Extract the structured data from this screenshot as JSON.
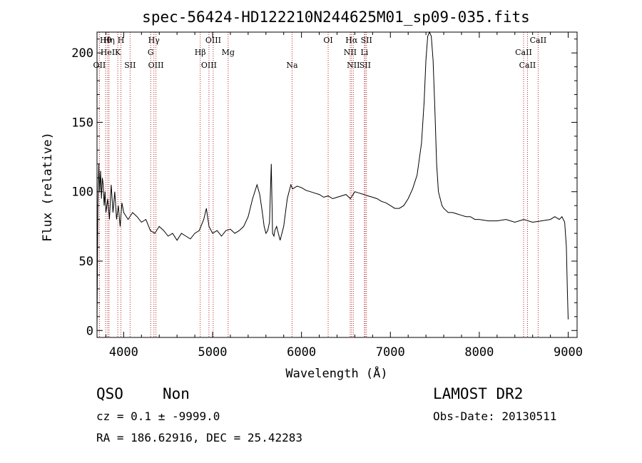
{
  "chart_data": {
    "type": "line",
    "title": "spec-56424-HD122210N244625M01_sp09-035.fits",
    "xlabel": "Wavelength (Å)",
    "ylabel": "Flux (relative)",
    "xlim": [
      3700,
      9100
    ],
    "ylim": [
      -5,
      215
    ],
    "xticks": [
      "4000",
      "5000",
      "6000",
      "7000",
      "8000",
      "9000"
    ],
    "yticks": [
      "0",
      "50",
      "100",
      "150",
      "200"
    ],
    "grid": false,
    "series": [
      {
        "color": "#000000",
        "x": [
          3700,
          3710,
          3720,
          3730,
          3740,
          3750,
          3760,
          3770,
          3780,
          3790,
          3800,
          3820,
          3840,
          3860,
          3880,
          3900,
          3920,
          3940,
          3960,
          3980,
          4000,
          4050,
          4100,
          4150,
          4200,
          4250,
          4300,
          4350,
          4400,
          4450,
          4500,
          4550,
          4600,
          4650,
          4700,
          4750,
          4800,
          4850,
          4900,
          4930,
          4960,
          5000,
          5050,
          5100,
          5150,
          5200,
          5250,
          5300,
          5350,
          5400,
          5450,
          5500,
          5530,
          5560,
          5580,
          5600,
          5620,
          5640,
          5660,
          5675,
          5690,
          5700,
          5720,
          5740,
          5760,
          5780,
          5800,
          5820,
          5840,
          5860,
          5880,
          5900,
          5950,
          6000,
          6050,
          6100,
          6150,
          6200,
          6250,
          6300,
          6350,
          6400,
          6450,
          6500,
          6550,
          6600,
          6650,
          6700,
          6750,
          6800,
          6850,
          6900,
          6950,
          7000,
          7050,
          7100,
          7150,
          7200,
          7250,
          7300,
          7350,
          7380,
          7400,
          7420,
          7440,
          7460,
          7480,
          7500,
          7520,
          7540,
          7560,
          7580,
          7600,
          7650,
          7700,
          7750,
          7800,
          7850,
          7900,
          7950,
          8000,
          8100,
          8200,
          8300,
          8400,
          8500,
          8600,
          8700,
          8800,
          8850,
          8900,
          8930,
          8960,
          8980,
          8990,
          9000
        ],
        "y": [
          3,
          90,
          120,
          100,
          115,
          95,
          110,
          105,
          90,
          100,
          85,
          95,
          80,
          105,
          85,
          100,
          80,
          90,
          75,
          92,
          85,
          80,
          85,
          82,
          78,
          80,
          72,
          70,
          75,
          72,
          68,
          70,
          65,
          70,
          68,
          66,
          70,
          72,
          80,
          88,
          75,
          70,
          72,
          68,
          72,
          73,
          70,
          72,
          75,
          82,
          95,
          105,
          98,
          85,
          75,
          70,
          72,
          78,
          120,
          70,
          68,
          72,
          75,
          70,
          65,
          70,
          75,
          85,
          95,
          100,
          105,
          102,
          104,
          103,
          101,
          100,
          99,
          98,
          96,
          97,
          95,
          96,
          97,
          98,
          95,
          100,
          99,
          98,
          97,
          96,
          95,
          93,
          92,
          90,
          88,
          88,
          90,
          95,
          102,
          112,
          135,
          165,
          195,
          212,
          215,
          212,
          195,
          160,
          120,
          100,
          95,
          90,
          88,
          85,
          85,
          84,
          83,
          82,
          82,
          80,
          80,
          79,
          79,
          80,
          78,
          80,
          78,
          79,
          80,
          82,
          80,
          82,
          78,
          60,
          30,
          8
        ]
      }
    ],
    "emission_lines": [
      {
        "label": "Hθ",
        "x": 3797
      },
      {
        "label": "HeI",
        "x": 3820
      },
      {
        "label": "OII",
        "x": 3727
      },
      {
        "label": "Hη",
        "x": 3835
      },
      {
        "label": "K",
        "x": 3934
      },
      {
        "label": "SII",
        "x": 4072
      },
      {
        "label": "H",
        "x": 3969
      },
      {
        "label": "G",
        "x": 4304
      },
      {
        "label": "OIII",
        "x": 4363
      },
      {
        "label": "Hγ",
        "x": 4340
      },
      {
        "label": "Hβ",
        "x": 4861
      },
      {
        "label": "OIII",
        "x": 4959
      },
      {
        "label": "OIII",
        "x": 5007
      },
      {
        "label": "Mg",
        "x": 5175
      },
      {
        "label": "Na",
        "x": 5894
      },
      {
        "label": "OI",
        "x": 6300
      },
      {
        "label": "NII",
        "x": 6548
      },
      {
        "label": "NII",
        "x": 6583
      },
      {
        "label": "Hα",
        "x": 6563
      },
      {
        "label": "Li",
        "x": 6708
      },
      {
        "label": "SII",
        "x": 6716
      },
      {
        "label": "SII",
        "x": 6731
      },
      {
        "label": "CaII",
        "x": 8498
      },
      {
        "label": "CaII",
        "x": 8542
      },
      {
        "label": "CaII",
        "x": 8662
      }
    ]
  },
  "footer": {
    "class": "QSO",
    "subclass": "Non",
    "cz": "cz = 0.1 ± -9999.0",
    "coords": "RA = 186.62916, DEC =  25.42283",
    "survey": "LAMOST DR2",
    "obs_date": "Obs-Date: 20130511"
  }
}
